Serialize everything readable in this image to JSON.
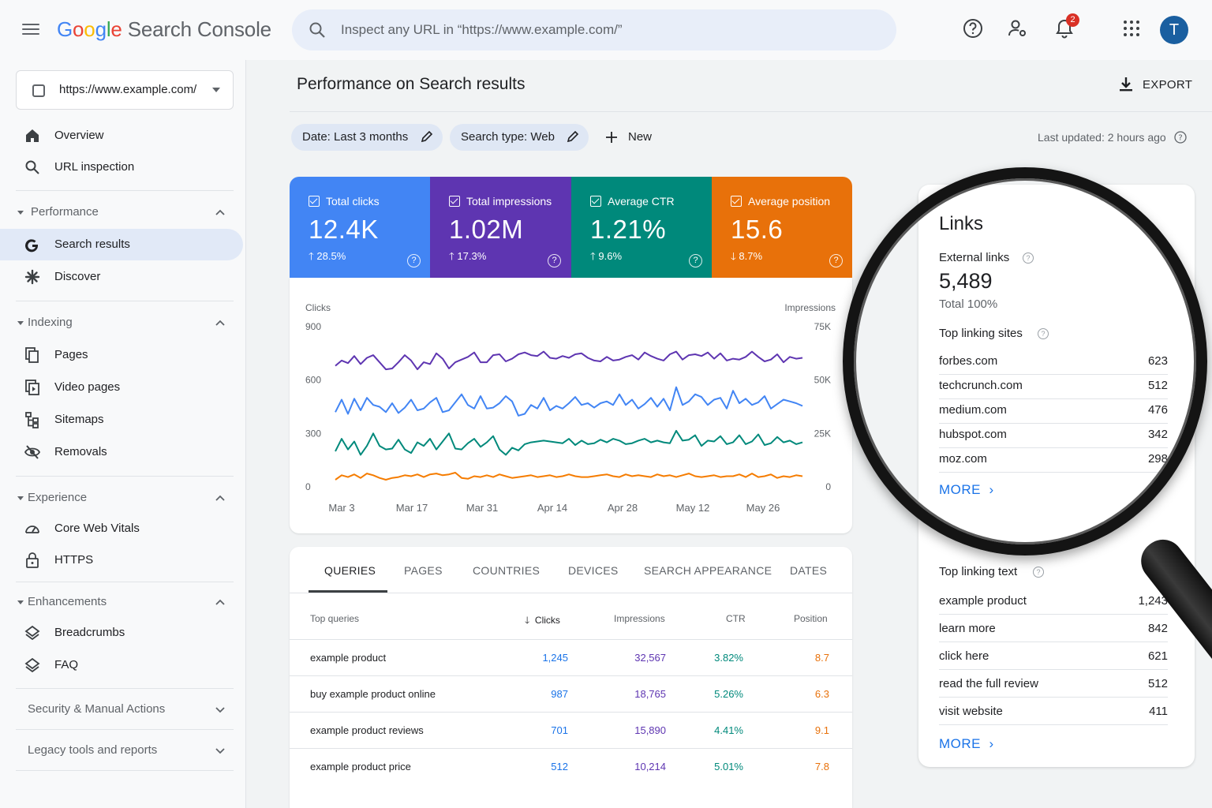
{
  "app": {
    "name": "Search Console",
    "logo_letters": [
      "G",
      "o",
      "o",
      "g",
      "l",
      "e"
    ]
  },
  "search": {
    "placeholder": "Inspect any URL in “https://www.example.com/”"
  },
  "notifications": {
    "count": "2"
  },
  "user": {
    "initial": "T"
  },
  "property": {
    "url": "https://www.example.com/"
  },
  "sidebar": {
    "overview": "Overview",
    "url_inspection": "URL inspection",
    "performance": "Performance",
    "search_results": "Search results",
    "discover": "Discover",
    "indexing": "Indexing",
    "pages": "Pages",
    "video_pages": "Video pages",
    "sitemaps": "Sitemaps",
    "removals": "Removals",
    "experience": "Experience",
    "core_web_vitals": "Core Web Vitals",
    "https": "HTTPS",
    "enhancements": "Enhancements",
    "breadcrumbs": "Breadcrumbs",
    "faq": "FAQ",
    "security": "Security & Manual Actions",
    "legacy": "Legacy tools and reports"
  },
  "main": {
    "title": "Performance on Search results",
    "export": "EXPORT",
    "filter_date": "Date: Last 3 months",
    "filter_type": "Search type: Web",
    "new": "New",
    "last_updated": "Last updated: 2 hours ago"
  },
  "metrics": [
    {
      "title": "Total clicks",
      "value": "12.4K",
      "delta": "28.5%",
      "dir": "up",
      "color": "#4285f4"
    },
    {
      "title": "Total impressions",
      "value": "1.02M",
      "delta": "17.3%",
      "dir": "up",
      "color": "#5e35b1"
    },
    {
      "title": "Average CTR",
      "value": "1.21%",
      "delta": "9.6%",
      "dir": "up",
      "color": "#00897b"
    },
    {
      "title": "Average position",
      "value": "15.6",
      "delta": "8.7%",
      "dir": "down",
      "color": "#e8710a"
    }
  ],
  "chart_data": {
    "type": "line",
    "ylabel": "Clicks",
    "y2label": "Impressions",
    "ylim": [
      0,
      900
    ],
    "y_ticks": [
      "900",
      "600",
      "300",
      "0"
    ],
    "y2_ticks": [
      "75K",
      "50K",
      "25K",
      "0"
    ],
    "x_ticks": [
      "Mar 3",
      "Mar 17",
      "Mar 31",
      "Apr 14",
      "Apr 28",
      "May 12",
      "May 26"
    ],
    "series": [
      {
        "color": "#5e35b1",
        "values": [
          680,
          710,
          695,
          735,
          690,
          725,
          740,
          700,
          660,
          665,
          700,
          740,
          710,
          660,
          700,
          690,
          750,
          720,
          665,
          700,
          715,
          730,
          755,
          700,
          700,
          740,
          745,
          705,
          720,
          745,
          755,
          740,
          735,
          760,
          725,
          720,
          735,
          725,
          745,
          750,
          725,
          710,
          705,
          730,
          710,
          715,
          730,
          740,
          715,
          755,
          735,
          720,
          710,
          745,
          760,
          715,
          740,
          745,
          735,
          755,
          720,
          750,
          710,
          720,
          715,
          730,
          760,
          730,
          705,
          715,
          745,
          700,
          730,
          720,
          725
        ]
      },
      {
        "color": "#4285f4",
        "values": [
          420,
          490,
          410,
          495,
          430,
          500,
          460,
          450,
          420,
          470,
          415,
          445,
          490,
          430,
          440,
          475,
          500,
          420,
          430,
          475,
          520,
          460,
          440,
          510,
          440,
          445,
          470,
          510,
          480,
          400,
          410,
          460,
          440,
          500,
          430,
          455,
          440,
          470,
          505,
          460,
          470,
          445,
          470,
          480,
          460,
          520,
          460,
          490,
          440,
          465,
          500,
          450,
          495,
          430,
          560,
          460,
          480,
          520,
          505,
          460,
          490,
          500,
          440,
          540,
          470,
          495,
          460,
          475,
          510,
          440,
          465,
          490,
          480,
          470,
          455
        ]
      },
      {
        "color": "#00897b",
        "values": [
          200,
          270,
          210,
          255,
          180,
          230,
          300,
          230,
          210,
          215,
          265,
          210,
          190,
          250,
          230,
          270,
          210,
          255,
          300,
          215,
          210,
          245,
          270,
          225,
          250,
          285,
          210,
          180,
          220,
          205,
          240,
          250,
          255,
          260,
          255,
          250,
          245,
          270,
          235,
          260,
          240,
          245,
          265,
          250,
          270,
          260,
          240,
          245,
          260,
          270,
          250,
          260,
          250,
          245,
          315,
          260,
          265,
          290,
          230,
          260,
          255,
          285,
          240,
          250,
          290,
          240,
          255,
          295,
          235,
          245,
          280,
          250,
          260,
          240,
          250
        ]
      },
      {
        "color": "#f57c00",
        "values": [
          40,
          65,
          55,
          70,
          50,
          75,
          65,
          50,
          40,
          50,
          55,
          65,
          60,
          70,
          55,
          70,
          75,
          65,
          70,
          80,
          50,
          45,
          60,
          55,
          65,
          55,
          70,
          60,
          50,
          55,
          60,
          65,
          55,
          60,
          65,
          55,
          60,
          70,
          60,
          55,
          55,
          60,
          65,
          70,
          60,
          55,
          70,
          60,
          65,
          60,
          55,
          70,
          60,
          65,
          55,
          65,
          75,
          60,
          55,
          60,
          65,
          55,
          60,
          60,
          70,
          55,
          75,
          55,
          60,
          70,
          50,
          60,
          55,
          65,
          60
        ]
      }
    ]
  },
  "table": {
    "tabs": [
      "QUERIES",
      "PAGES",
      "COUNTRIES",
      "DEVICES",
      "SEARCH APPEARANCE",
      "DATES"
    ],
    "headers": {
      "query": "Top queries",
      "clicks": "Clicks",
      "impressions": "Impressions",
      "ctr": "CTR",
      "position": "Position"
    },
    "rows": [
      {
        "query": "example product",
        "clicks": "1,245",
        "impressions": "32,567",
        "ctr": "3.82%",
        "position": "8.7"
      },
      {
        "query": "buy example product online",
        "clicks": "987",
        "impressions": "18,765",
        "ctr": "5.26%",
        "position": "6.3"
      },
      {
        "query": "example product reviews",
        "clicks": "701",
        "impressions": "15,890",
        "ctr": "4.41%",
        "position": "9.1"
      },
      {
        "query": "example product price",
        "clicks": "512",
        "impressions": "10,214",
        "ctr": "5.01%",
        "position": "7.8"
      }
    ]
  },
  "links": {
    "title": "Links",
    "external_label": "External links",
    "external_value": "5,489",
    "external_total": "Total 100%",
    "sites_label": "Top linking sites",
    "sites": [
      {
        "name": "forbes.com",
        "value": "623"
      },
      {
        "name": "techcrunch.com",
        "value": "512"
      },
      {
        "name": "medium.com",
        "value": "476"
      },
      {
        "name": "hubspot.com",
        "value": "342"
      },
      {
        "name": "moz.com",
        "value": "298"
      }
    ],
    "more": "MORE",
    "text_label": "Top linking text",
    "texts": [
      {
        "name": "example product",
        "value": "1,243"
      },
      {
        "name": "learn more",
        "value": "842"
      },
      {
        "name": "click here",
        "value": "621"
      },
      {
        "name": "read the full review",
        "value": "512"
      },
      {
        "name": "visit website",
        "value": "411"
      }
    ]
  }
}
